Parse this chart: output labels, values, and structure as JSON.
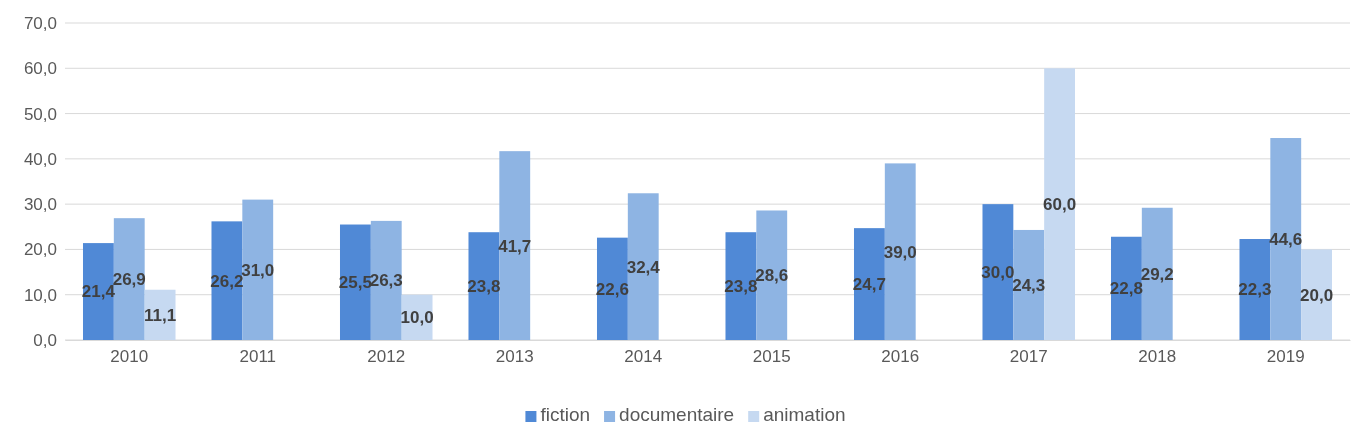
{
  "chart_data": {
    "type": "bar",
    "categories": [
      "2010",
      "2011",
      "2012",
      "2013",
      "2014",
      "2015",
      "2016",
      "2017",
      "2018",
      "2019"
    ],
    "series": [
      {
        "name": "fiction",
        "color": "#5089d6",
        "values": [
          21.4,
          26.2,
          25.5,
          23.8,
          22.6,
          23.8,
          24.7,
          30.0,
          22.8,
          22.3
        ],
        "value_labels": [
          "21,4",
          "26,2",
          "25,5",
          "23,8",
          "22,6",
          "23,8",
          "24,7",
          "30,0",
          "22,8",
          "22,3"
        ]
      },
      {
        "name": "documentaire",
        "color": "#8eb4e3",
        "values": [
          26.9,
          31.0,
          26.3,
          41.7,
          32.4,
          28.6,
          39.0,
          24.3,
          29.2,
          44.6
        ],
        "value_labels": [
          "26,9",
          "31,0",
          "26,3",
          "41,7",
          "32,4",
          "28,6",
          "39,0",
          "24,3",
          "29,2",
          "44,6"
        ]
      },
      {
        "name": "animation",
        "color": "#c6d9f1",
        "values": [
          11.1,
          null,
          10.0,
          null,
          null,
          null,
          null,
          60.0,
          null,
          20.0
        ],
        "value_labels": [
          "11,1",
          null,
          "10,0",
          null,
          null,
          null,
          null,
          "60,0",
          null,
          "20,0"
        ]
      }
    ],
    "ylim": [
      0,
      70
    ],
    "yticks": [
      {
        "value": 0,
        "label": "0,0"
      },
      {
        "value": 10,
        "label": "10,0"
      },
      {
        "value": 20,
        "label": "20,0"
      },
      {
        "value": 30,
        "label": "30,0"
      },
      {
        "value": 40,
        "label": "40,0"
      },
      {
        "value": 50,
        "label": "50,0"
      },
      {
        "value": 60,
        "label": "60,0"
      },
      {
        "value": 70,
        "label": "70,0"
      }
    ],
    "grid": "y",
    "legend": "bottom"
  }
}
